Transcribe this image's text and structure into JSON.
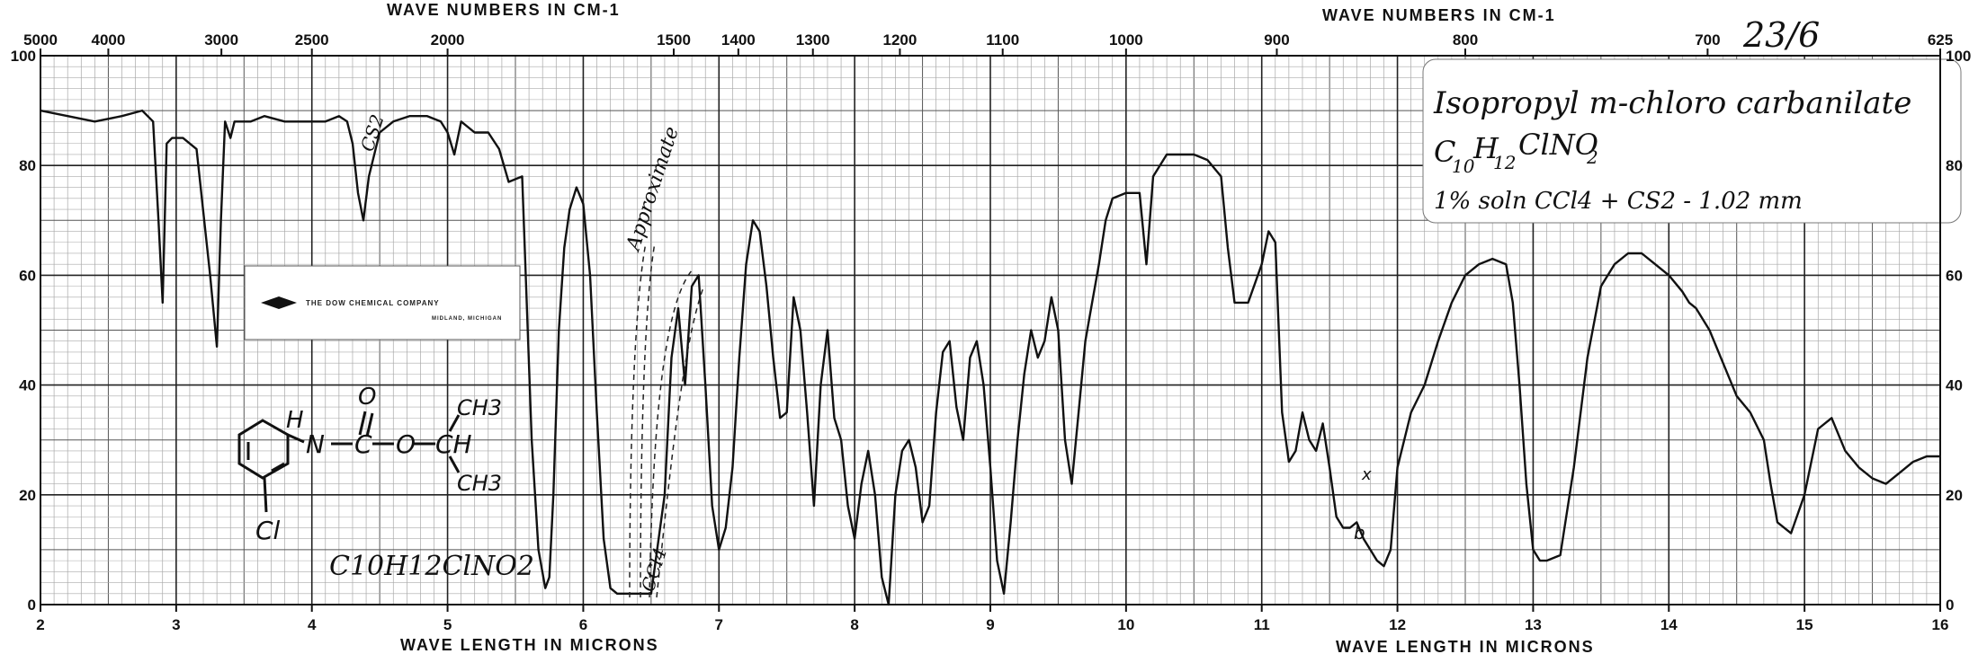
{
  "chart_data": {
    "type": "line",
    "top_axis_title_left": "WAVE NUMBERS IN CM-1",
    "top_axis_title_right": "WAVE NUMBERS IN CM-1",
    "bottom_axis_title_left": "WAVE LENGTH IN MICRONS",
    "bottom_axis_title_right": "WAVE LENGTH IN MICRONS",
    "top_ticks_left": [
      "5000",
      "4000",
      "3000",
      "2500",
      "2000",
      "1500",
      "1400",
      "1300",
      "1200",
      "1100",
      "1000"
    ],
    "top_ticks_right": [
      "900",
      "800",
      "700",
      "625"
    ],
    "bottom_ticks": [
      "2",
      "3",
      "4",
      "5",
      "6",
      "7",
      "8",
      "9",
      "10",
      "11",
      "12",
      "13",
      "14",
      "15",
      "16"
    ],
    "y_ticks": [
      "0",
      "20",
      "40",
      "60",
      "80",
      "100"
    ],
    "xlim": [
      2,
      16
    ],
    "ylim": [
      0,
      100
    ],
    "grid": true,
    "series": [
      {
        "x": [
          2.0,
          2.2,
          2.4,
          2.6,
          2.75,
          2.83,
          2.87,
          2.9,
          2.93,
          2.97,
          3.05,
          3.15,
          3.25,
          3.3,
          3.33,
          3.36,
          3.4,
          3.43,
          3.47,
          3.55,
          3.65,
          3.8,
          3.95,
          4.1,
          4.2,
          4.26,
          4.3,
          4.34,
          4.38,
          4.42,
          4.5,
          4.6,
          4.72,
          4.85,
          4.95,
          5.0,
          5.05,
          5.1,
          5.2,
          5.3,
          5.38,
          5.45,
          5.55,
          5.62,
          5.67,
          5.72,
          5.75,
          5.78,
          5.82,
          5.86,
          5.9,
          5.95,
          6.0,
          6.05,
          6.1,
          6.15,
          6.2,
          6.25,
          6.32,
          6.4,
          6.5,
          6.6,
          6.65,
          6.7,
          6.75,
          6.8,
          6.85,
          6.9,
          6.95,
          7.0,
          7.05,
          7.1,
          7.15,
          7.2,
          7.25,
          7.3,
          7.35,
          7.4,
          7.45,
          7.5,
          7.55,
          7.6,
          7.65,
          7.7,
          7.75,
          7.8,
          7.85,
          7.9,
          7.95,
          8.0,
          8.05,
          8.1,
          8.15,
          8.2,
          8.25,
          8.3,
          8.35,
          8.4,
          8.45,
          8.5,
          8.55,
          8.6,
          8.65,
          8.7,
          8.75,
          8.8,
          8.85,
          8.9,
          8.95,
          9.0,
          9.05,
          9.1,
          9.15,
          9.2,
          9.25,
          9.3,
          9.35,
          9.4,
          9.45,
          9.5,
          9.55,
          9.6,
          9.65,
          9.7,
          9.75,
          9.8,
          9.85,
          9.9,
          10.0,
          10.1,
          10.15,
          10.2,
          10.3,
          10.4,
          10.5,
          10.6,
          10.7,
          10.75,
          10.8,
          10.9,
          11.0,
          11.05,
          11.1,
          11.15,
          11.2,
          11.25,
          11.3,
          11.35,
          11.4,
          11.45,
          11.5,
          11.55,
          11.6,
          11.65,
          11.7,
          11.75,
          11.8,
          11.85,
          11.9,
          11.95,
          12.0,
          12.1,
          12.2,
          12.3,
          12.4,
          12.5,
          12.6,
          12.7,
          12.8,
          12.85,
          12.9,
          12.95,
          13.0,
          13.05,
          13.1,
          13.2,
          13.3,
          13.4,
          13.5,
          13.6,
          13.7,
          13.8,
          13.9,
          14.0,
          14.1,
          14.15,
          14.2,
          14.3,
          14.4,
          14.5,
          14.6,
          14.7,
          14.75,
          14.8,
          14.9,
          15.0,
          15.1,
          15.2,
          15.3,
          15.4,
          15.5,
          15.6,
          15.7,
          15.8,
          15.9,
          16.0
        ],
        "y": [
          90,
          89,
          88,
          89,
          90,
          88,
          70,
          55,
          84,
          85,
          85,
          83,
          60,
          47,
          70,
          88,
          85,
          88,
          88,
          88,
          89,
          88,
          88,
          88,
          89,
          88,
          84,
          75,
          70,
          78,
          86,
          88,
          89,
          89,
          88,
          86,
          82,
          88,
          86,
          86,
          83,
          77,
          78,
          30,
          10,
          3,
          5,
          20,
          50,
          65,
          72,
          76,
          73,
          60,
          35,
          12,
          3,
          2,
          2,
          2,
          2,
          20,
          45,
          54,
          40,
          58,
          60,
          40,
          18,
          10,
          14,
          25,
          45,
          62,
          70,
          68,
          58,
          45,
          34,
          35,
          56,
          50,
          35,
          18,
          40,
          50,
          34,
          30,
          18,
          12,
          22,
          28,
          20,
          5,
          0,
          20,
          28,
          30,
          25,
          15,
          18,
          35,
          46,
          48,
          36,
          30,
          45,
          48,
          40,
          25,
          8,
          2,
          15,
          30,
          42,
          50,
          45,
          48,
          56,
          50,
          30,
          22,
          35,
          48,
          55,
          62,
          70,
          74,
          75,
          75,
          62,
          78,
          82,
          82,
          82,
          81,
          78,
          65,
          55,
          55,
          62,
          68,
          66,
          35,
          26,
          28,
          35,
          30,
          28,
          33,
          25,
          16,
          14,
          14,
          15,
          12,
          10,
          8,
          7,
          10,
          25,
          35,
          40,
          48,
          55,
          60,
          62,
          63,
          62,
          55,
          40,
          22,
          10,
          8,
          8,
          9,
          25,
          45,
          58,
          62,
          64,
          64,
          62,
          60,
          57,
          55,
          54,
          50,
          44,
          38,
          35,
          30,
          22,
          15,
          13,
          20,
          32,
          34,
          28,
          25,
          23,
          22,
          24,
          26,
          27,
          27
        ]
      }
    ]
  },
  "annotations": {
    "catalog_number": "23/6",
    "compound_name": "Isopropyl m-chloro carbanilate",
    "formula_c": "C",
    "formula_c_sub": "10",
    "formula_h": "H",
    "formula_h_sub": "12",
    "formula_rest": "ClNO",
    "formula_o_sub": "2",
    "conditions": "1% soln CCl4 + CS2 - 1.02 mm",
    "approximate_note": "Approximate",
    "cs2_note_1": "CS2",
    "cs2_note_2": "CCl4",
    "peak_note_1": "x",
    "peak_note_2": "b",
    "logo_text_1": "THE DOW CHEMICAL COMPANY",
    "logo_text_2": "MIDLAND, MICHIGAN",
    "structure_o": "O",
    "structure_h": "H",
    "structure_n": "N",
    "structure_c": "C",
    "structure_o2": "O",
    "structure_ch": "CH",
    "structure_ch3_top": "CH3",
    "structure_ch3_bottom": "CH3",
    "structure_cl": "Cl",
    "bottom_formula": "C10H12ClNO2"
  }
}
